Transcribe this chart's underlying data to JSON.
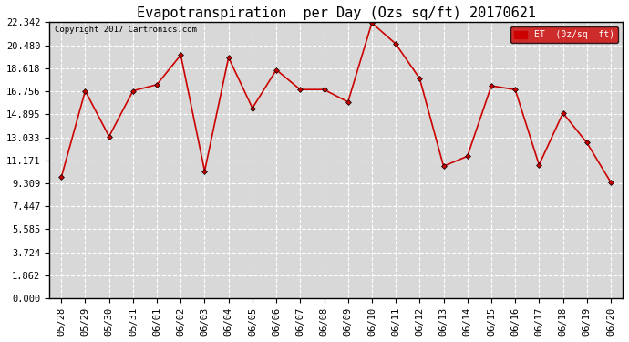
{
  "title": "Evapotranspiration  per Day (Ozs sq/ft) 20170621",
  "copyright": "Copyright 2017 Cartronics.com",
  "legend_label": "ET  (0z/sq  ft)",
  "x_labels": [
    "05/28",
    "05/29",
    "05/30",
    "05/31",
    "06/01",
    "06/02",
    "06/03",
    "06/04",
    "06/05",
    "06/06",
    "06/07",
    "06/08",
    "06/09",
    "06/10",
    "06/11",
    "06/12",
    "06/13",
    "06/14",
    "06/15",
    "06/16",
    "06/17",
    "06/18",
    "06/19",
    "06/20"
  ],
  "y_values": [
    9.8,
    16.8,
    13.1,
    16.8,
    17.3,
    19.7,
    10.3,
    19.5,
    15.4,
    18.5,
    16.9,
    16.9,
    15.9,
    22.3,
    20.6,
    17.8,
    10.7,
    11.5,
    17.2,
    16.9,
    10.8,
    15.0,
    12.6,
    9.4
  ],
  "line_color": "#cc0000",
  "marker": "D",
  "marker_size": 3,
  "background_color": "#ffffff",
  "plot_bg_color": "#d8d8d8",
  "grid_color": "#ffffff",
  "title_fontsize": 11,
  "tick_fontsize": 7.5,
  "y_ticks": [
    0.0,
    1.862,
    3.724,
    5.585,
    7.447,
    9.309,
    11.171,
    13.033,
    14.895,
    16.756,
    18.618,
    20.48,
    22.342
  ],
  "ylim": [
    0,
    22.342
  ],
  "legend_bg": "#cc0000",
  "legend_text_color": "#ffffff"
}
